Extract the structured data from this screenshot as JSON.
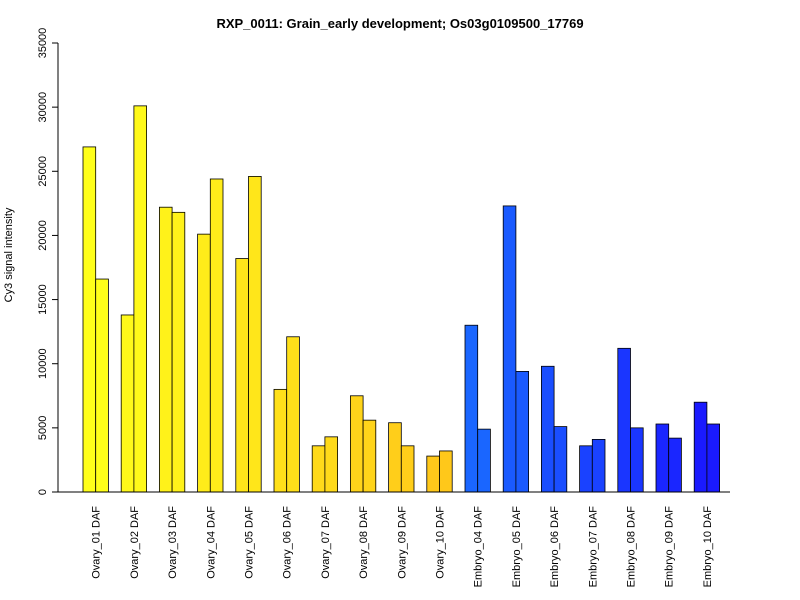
{
  "chart_data": {
    "type": "bar",
    "title": "RXP_0011: Grain_early development; Os03g0109500_17769",
    "xlabel": "",
    "ylabel": "Cy3 signal intensity",
    "ylim": [
      0,
      35000
    ],
    "yticks": [
      0,
      5000,
      10000,
      15000,
      20000,
      25000,
      30000,
      35000
    ],
    "grid": false,
    "legend": "none",
    "bars_per_group": 2,
    "groups": [
      {
        "label": "Ovary_01 DAF",
        "values": [
          26900,
          16600
        ],
        "color": "#FFFF1A"
      },
      {
        "label": "Ovary_02 DAF",
        "values": [
          13800,
          30100
        ],
        "color": "#FFF91A"
      },
      {
        "label": "Ovary_03 DAF",
        "values": [
          22200,
          21800
        ],
        "color": "#FFF21A"
      },
      {
        "label": "Ovary_04 DAF",
        "values": [
          20100,
          24400
        ],
        "color": "#FFEC1A"
      },
      {
        "label": "Ovary_05 DAF",
        "values": [
          18200,
          24600
        ],
        "color": "#FFE61A"
      },
      {
        "label": "Ovary_06 DAF",
        "values": [
          8000,
          12100
        ],
        "color": "#FFE01A"
      },
      {
        "label": "Ovary_07 DAF",
        "values": [
          3600,
          4300
        ],
        "color": "#FFDA1A"
      },
      {
        "label": "Ovary_08 DAF",
        "values": [
          7500,
          5600
        ],
        "color": "#FFD41A"
      },
      {
        "label": "Ovary_09 DAF",
        "values": [
          5400,
          3600
        ],
        "color": "#FFCE1A"
      },
      {
        "label": "Ovary_10 DAF",
        "values": [
          2800,
          3200
        ],
        "color": "#FFC81A"
      },
      {
        "label": "Embryo_04 DAF",
        "values": [
          13000,
          4900
        ],
        "color": "#1A66FF"
      },
      {
        "label": "Embryo_05 DAF",
        "values": [
          22300,
          9400
        ],
        "color": "#1A5AFF"
      },
      {
        "label": "Embryo_06 DAF",
        "values": [
          9800,
          5100
        ],
        "color": "#1A4EFF"
      },
      {
        "label": "Embryo_07 DAF",
        "values": [
          3600,
          4100
        ],
        "color": "#1A42FF"
      },
      {
        "label": "Embryo_08 DAF",
        "values": [
          11200,
          5000
        ],
        "color": "#1A36FF"
      },
      {
        "label": "Embryo_09 DAF",
        "values": [
          5300,
          4200
        ],
        "color": "#1A26FF"
      },
      {
        "label": "Embryo_10 DAF",
        "values": [
          7000,
          5300
        ],
        "color": "#1A1AFF"
      }
    ]
  }
}
